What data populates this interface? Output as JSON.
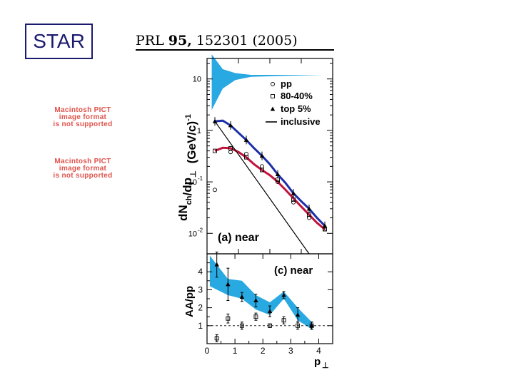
{
  "slide": {
    "badge": "STAR"
  },
  "reference": {
    "journal": "PRL",
    "volume": "95,",
    "page_year": "152301 (2005)"
  },
  "placeholders": [
    {
      "lines": [
        "Macintosh PICT",
        "image format",
        "is not supported"
      ]
    },
    {
      "lines": [
        "Macintosh PICT",
        "image format",
        "is not supported"
      ]
    }
  ],
  "colors": {
    "band": "#29a9e1",
    "peripheral_curve": "#c0143c",
    "central_curve": "#1b2fa8",
    "badge": "#1a1a6e",
    "placeholder_text": "#e0524a"
  },
  "chart_data": [
    {
      "type": "line",
      "panel_label": "(a) near",
      "ylabel_parts": {
        "main": "dN",
        "sub1": "ch",
        "mid": "/dp",
        "sub2": "⊥",
        "unit": "(GeV/c)",
        "sup": "-1"
      },
      "yscale": "log",
      "ylim": [
        0.004,
        25
      ],
      "xlim": [
        0,
        4
      ],
      "ytick_labels": [
        {
          "v": 10,
          "text": "10"
        },
        {
          "v": 1,
          "text": "1"
        },
        {
          "v": 0.1,
          "text": "10",
          "sup": "-1"
        },
        {
          "v": 0.01,
          "text": "10",
          "sup": "-2"
        }
      ],
      "legend": [
        {
          "marker": "open-circle",
          "label": "pp"
        },
        {
          "marker": "open-square",
          "label": "80-40%"
        },
        {
          "marker": "filled-triangle",
          "label": "top 5%"
        },
        {
          "marker": "line",
          "label": "inclusive"
        }
      ],
      "series": [
        {
          "name": "top 5%",
          "marker": "filled-triangle",
          "x": [
            0.25,
            0.75,
            1.25,
            1.75,
            2.25,
            2.75,
            3.25,
            3.75
          ],
          "y": [
            1.5,
            1.25,
            0.65,
            0.32,
            0.14,
            0.06,
            0.03,
            0.014
          ]
        },
        {
          "name": "80-40%",
          "marker": "open-square",
          "x": [
            0.25,
            0.75,
            1.25,
            1.75,
            2.25,
            2.75,
            3.25,
            3.75
          ],
          "y": [
            0.4,
            0.45,
            0.3,
            0.17,
            0.11,
            0.045,
            0.023,
            0.012
          ]
        },
        {
          "name": "pp",
          "marker": "open-circle",
          "x": [
            0.25,
            0.75,
            1.25,
            1.75,
            2.25,
            2.75,
            3.25,
            3.75
          ],
          "y": [
            0.07,
            0.38,
            0.35,
            0.2,
            0.1,
            0.04,
            0.02,
            0.012
          ]
        },
        {
          "name": "central fit",
          "style": "line",
          "color": "#1b2fa8",
          "x": [
            0.25,
            0.5,
            0.75,
            1.0,
            1.25,
            1.5,
            1.75,
            2.0,
            2.25,
            2.5,
            2.75,
            3.0,
            3.25,
            3.5,
            3.75
          ],
          "y": [
            1.5,
            1.55,
            1.25,
            0.9,
            0.65,
            0.45,
            0.32,
            0.22,
            0.14,
            0.095,
            0.06,
            0.042,
            0.03,
            0.02,
            0.014
          ]
        },
        {
          "name": "peripheral fit",
          "style": "line",
          "color": "#c0143c",
          "x": [
            0.25,
            0.5,
            0.75,
            1.0,
            1.25,
            1.5,
            1.75,
            2.0,
            2.25,
            2.5,
            2.75,
            3.0,
            3.25,
            3.5,
            3.75
          ],
          "y": [
            0.4,
            0.46,
            0.45,
            0.38,
            0.3,
            0.22,
            0.17,
            0.135,
            0.1,
            0.07,
            0.048,
            0.033,
            0.023,
            0.016,
            0.012
          ]
        },
        {
          "name": "inclusive",
          "style": "line",
          "color": "#000000",
          "x": [
            0.25,
            3.25
          ],
          "y": [
            1.5,
            0.004
          ]
        }
      ],
      "band": {
        "x_start": 0.15,
        "x_end": 3.7,
        "upper": [
          30,
          15.5,
          13,
          12,
          12
        ],
        "lower": [
          2.5,
          6.5,
          9.5,
          11,
          12
        ],
        "band_x": [
          0.15,
          0.5,
          0.9,
          1.4,
          3.7
        ]
      }
    },
    {
      "type": "scatter",
      "panel_label": "(c) near",
      "ylabel": "AA/pp",
      "xlabel": "p",
      "xlabel_sub": "⊥",
      "xlim": [
        0,
        4.5
      ],
      "ylim": [
        0,
        5
      ],
      "xticks": [
        0,
        1,
        2,
        3,
        4
      ],
      "xtick_labels": [
        "0",
        "1",
        "2",
        "3",
        "4"
      ],
      "yticks": [
        1,
        2,
        3,
        4
      ],
      "ytick_labels": [
        "1",
        "2",
        "3",
        "4"
      ],
      "reference_line": 1,
      "series": [
        {
          "name": "central",
          "marker": "filled-triangle",
          "x": [
            0.35,
            0.75,
            1.25,
            1.75,
            2.25,
            2.75,
            3.25,
            3.75
          ],
          "y": [
            4.4,
            3.3,
            2.6,
            2.4,
            1.8,
            2.7,
            1.6,
            1.0
          ],
          "err": [
            0.7,
            0.9,
            0.25,
            0.35,
            0.3,
            0.2,
            0.4,
            0.2
          ]
        },
        {
          "name": "peripheral",
          "marker": "open-square",
          "x": [
            0.35,
            0.75,
            1.25,
            1.75,
            2.25,
            2.75,
            3.25,
            3.75
          ],
          "y": [
            0.3,
            1.4,
            1.0,
            1.5,
            1.0,
            1.3,
            1.0,
            1.0
          ],
          "err": [
            0.2,
            0.25,
            0.2,
            0.2,
            0.1,
            0.2,
            0.2,
            0.2
          ]
        }
      ],
      "band": {
        "x": [
          0.1,
          0.75,
          1.25,
          1.75,
          2.25,
          2.75,
          3.25,
          3.75
        ],
        "upper": [
          4.9,
          3.6,
          3.5,
          2.7,
          2.3,
          2.9,
          2.0,
          1.2
        ],
        "lower": [
          3.2,
          2.7,
          2.5,
          1.9,
          1.6,
          2.5,
          1.3,
          0.8
        ]
      }
    }
  ]
}
